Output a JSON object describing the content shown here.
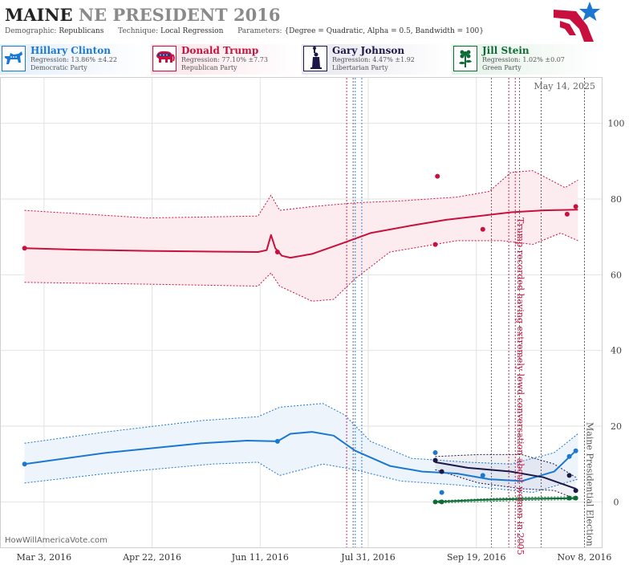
{
  "header": {
    "title_state": "MAINE",
    "title_rest": "NE PRESIDENT 2016",
    "demographic_label": "Demographic:",
    "demographic_value": "Republicans",
    "technique_label": "Technique:",
    "technique_value": "Local Regression",
    "parameters_label": "Parameters:",
    "parameters_value": "{Degree = Quadratic, Alpha = 0.5, Bandwidth = 100}"
  },
  "candidates": [
    {
      "name": "Hillary Clinton",
      "regression": "Regression: 13.86% ±4.22",
      "party": "Democratic Party",
      "color": "#1a78d2",
      "icon": "donkey-icon"
    },
    {
      "name": "Donald Trump",
      "regression": "Regression: 77.10% ±7.73",
      "party": "Republican Party",
      "color": "#c8103e",
      "icon": "elephant-icon"
    },
    {
      "name": "Gary Johnson",
      "regression": "Regression: 4.47% ±1.92",
      "party": "Libertarian Party",
      "color": "#1b1848",
      "icon": "liberty-statue-icon"
    },
    {
      "name": "Jill Stein",
      "regression": "Regression: 1.02% ±0.07",
      "party": "Green Party",
      "color": "#0f6b35",
      "icon": "flower-icon"
    }
  ],
  "chart_data": {
    "type": "line",
    "date_label": "May 14, 2025",
    "x_ticks": [
      "Mar 3, 2016",
      "Apr 22, 2016",
      "Jun 11, 2016",
      "Jul 31, 2016",
      "Sep 19, 2016",
      "Nov 8, 2016"
    ],
    "x_tick_dates": [
      "2016-03-03",
      "2016-04-22",
      "2016-06-11",
      "2016-07-31",
      "2016-09-19",
      "2016-11-08"
    ],
    "x_range": [
      "2016-02-12",
      "2016-11-16"
    ],
    "y_ticks": [
      0,
      20,
      40,
      60,
      80,
      100
    ],
    "ylim": [
      -12,
      112
    ],
    "grid": true,
    "annotations": [
      {
        "text": "Trump recorded having extremely lewd conversation about women in 2005",
        "x": "2016-10-07",
        "color": "#c8103e"
      },
      {
        "text": "Maine Presidential Election",
        "x": "2016-11-08",
        "color": "#555555"
      }
    ],
    "event_lines": [
      {
        "x": "2016-07-21",
        "color": "#c8103e"
      },
      {
        "x": "2016-07-24",
        "color": "#555555"
      },
      {
        "x": "2016-07-25",
        "color": "#1a78d2"
      },
      {
        "x": "2016-07-28",
        "color": "#1a78d2"
      },
      {
        "x": "2016-09-26",
        "color": "#555555"
      },
      {
        "x": "2016-10-04",
        "color": "#c8103e"
      },
      {
        "x": "2016-10-07",
        "color": "#c8103e"
      },
      {
        "x": "2016-10-09",
        "color": "#555555"
      },
      {
        "x": "2016-10-19",
        "color": "#555555"
      },
      {
        "x": "2016-11-08",
        "color": "#555555"
      }
    ],
    "series": [
      {
        "name": "Donald Trump",
        "color": "#c8103e",
        "band_fill": "#fdecef",
        "points": [
          [
            "2016-02-23",
            67
          ],
          [
            "2016-06-19",
            66
          ],
          [
            "2016-08-31",
            68
          ],
          [
            "2016-09-01",
            86
          ],
          [
            "2016-09-22",
            72
          ],
          [
            "2016-10-31",
            76
          ],
          [
            "2016-11-04",
            78
          ]
        ],
        "trend": [
          [
            "2016-02-23",
            67
          ],
          [
            "2016-03-20",
            66.6
          ],
          [
            "2016-04-20",
            66.3
          ],
          [
            "2016-05-20",
            66.1
          ],
          [
            "2016-06-10",
            66
          ],
          [
            "2016-06-14",
            66.5
          ],
          [
            "2016-06-16",
            70.5
          ],
          [
            "2016-06-18",
            67
          ],
          [
            "2016-06-21",
            65
          ],
          [
            "2016-06-25",
            64.5
          ],
          [
            "2016-07-05",
            65.5
          ],
          [
            "2016-07-20",
            68.5
          ],
          [
            "2016-08-01",
            71
          ],
          [
            "2016-08-20",
            73
          ],
          [
            "2016-09-05",
            74.5
          ],
          [
            "2016-09-20",
            75.5
          ],
          [
            "2016-10-05",
            76.5
          ],
          [
            "2016-10-20",
            77
          ],
          [
            "2016-11-05",
            77.2
          ]
        ],
        "upper": [
          [
            "2016-02-23",
            77
          ],
          [
            "2016-04-20",
            75
          ],
          [
            "2016-06-10",
            75.5
          ],
          [
            "2016-06-16",
            81
          ],
          [
            "2016-06-20",
            77
          ],
          [
            "2016-07-05",
            78
          ],
          [
            "2016-07-25",
            79
          ],
          [
            "2016-08-15",
            79.5
          ],
          [
            "2016-09-10",
            80.5
          ],
          [
            "2016-09-25",
            82
          ],
          [
            "2016-10-05",
            87
          ],
          [
            "2016-10-15",
            87.5
          ],
          [
            "2016-10-30",
            83
          ],
          [
            "2016-11-05",
            85
          ]
        ],
        "lower": [
          [
            "2016-02-23",
            58
          ],
          [
            "2016-04-20",
            57.5
          ],
          [
            "2016-06-10",
            57
          ],
          [
            "2016-06-16",
            60.5
          ],
          [
            "2016-06-20",
            57
          ],
          [
            "2016-07-05",
            53
          ],
          [
            "2016-07-15",
            53.5
          ],
          [
            "2016-07-25",
            59
          ],
          [
            "2016-08-10",
            66
          ],
          [
            "2016-09-10",
            69
          ],
          [
            "2016-10-01",
            69
          ],
          [
            "2016-10-15",
            68
          ],
          [
            "2016-10-28",
            71
          ],
          [
            "2016-11-05",
            69
          ]
        ]
      },
      {
        "name": "Hillary Clinton",
        "color": "#1a78d2",
        "band_fill": "#eef4fb",
        "points": [
          [
            "2016-02-23",
            10
          ],
          [
            "2016-06-19",
            16
          ],
          [
            "2016-08-31",
            13
          ],
          [
            "2016-09-03",
            2.5
          ],
          [
            "2016-09-22",
            7
          ],
          [
            "2016-11-01",
            12
          ],
          [
            "2016-11-04",
            13.5
          ]
        ],
        "trend": [
          [
            "2016-02-23",
            10
          ],
          [
            "2016-04-01",
            13
          ],
          [
            "2016-05-15",
            15.5
          ],
          [
            "2016-06-05",
            16.2
          ],
          [
            "2016-06-19",
            16
          ],
          [
            "2016-06-25",
            18
          ],
          [
            "2016-07-05",
            18.5
          ],
          [
            "2016-07-15",
            17.5
          ],
          [
            "2016-07-25",
            13.5
          ],
          [
            "2016-08-10",
            9.5
          ],
          [
            "2016-08-25",
            8
          ],
          [
            "2016-09-10",
            7.5
          ],
          [
            "2016-09-25",
            6
          ],
          [
            "2016-10-10",
            5.5
          ],
          [
            "2016-10-25",
            8
          ],
          [
            "2016-11-04",
            13.5
          ]
        ],
        "upper": [
          [
            "2016-02-23",
            15.5
          ],
          [
            "2016-04-01",
            18.5
          ],
          [
            "2016-05-15",
            21.5
          ],
          [
            "2016-06-10",
            22.5
          ],
          [
            "2016-06-20",
            25
          ],
          [
            "2016-07-10",
            26
          ],
          [
            "2016-07-20",
            23
          ],
          [
            "2016-08-01",
            16
          ],
          [
            "2016-08-20",
            11.5
          ],
          [
            "2016-09-15",
            10.5
          ],
          [
            "2016-10-05",
            10
          ],
          [
            "2016-10-25",
            13
          ],
          [
            "2016-11-05",
            18
          ]
        ],
        "lower": [
          [
            "2016-02-23",
            5
          ],
          [
            "2016-04-01",
            7.5
          ],
          [
            "2016-05-20",
            10
          ],
          [
            "2016-06-10",
            10.5
          ],
          [
            "2016-06-20",
            7
          ],
          [
            "2016-07-10",
            10
          ],
          [
            "2016-07-25",
            8.5
          ],
          [
            "2016-08-15",
            5.5
          ],
          [
            "2016-09-10",
            4.5
          ],
          [
            "2016-09-28",
            3.5
          ],
          [
            "2016-10-15",
            2.5
          ],
          [
            "2016-11-05",
            6
          ]
        ]
      },
      {
        "name": "Gary Johnson",
        "color": "#1b1848",
        "band_fill": "rgba(40,40,80,0.06)",
        "points": [
          [
            "2016-08-31",
            11
          ],
          [
            "2016-09-03",
            8
          ],
          [
            "2016-11-01",
            7
          ],
          [
            "2016-11-04",
            3
          ]
        ],
        "trend": [
          [
            "2016-08-31",
            10.5
          ],
          [
            "2016-09-15",
            9
          ],
          [
            "2016-10-05",
            8
          ],
          [
            "2016-10-20",
            6.5
          ],
          [
            "2016-11-04",
            3.5
          ]
        ],
        "upper": [
          [
            "2016-08-31",
            12
          ],
          [
            "2016-09-20",
            12.5
          ],
          [
            "2016-10-10",
            12.5
          ],
          [
            "2016-10-25",
            10
          ],
          [
            "2016-11-04",
            6.5
          ]
        ],
        "lower": [
          [
            "2016-08-31",
            8.5
          ],
          [
            "2016-09-20",
            5
          ],
          [
            "2016-10-10",
            3.5
          ],
          [
            "2016-10-25",
            3
          ],
          [
            "2016-11-04",
            0.8
          ]
        ]
      },
      {
        "name": "Jill Stein",
        "color": "#0f6b35",
        "band_fill": "rgba(15,107,53,0.06)",
        "points": [
          [
            "2016-08-31",
            0
          ],
          [
            "2016-09-03",
            0
          ],
          [
            "2016-11-01",
            1
          ],
          [
            "2016-11-04",
            1
          ]
        ],
        "trend": [
          [
            "2016-08-31",
            0
          ],
          [
            "2016-09-20",
            0.5
          ],
          [
            "2016-10-10",
            0.8
          ],
          [
            "2016-11-04",
            1
          ]
        ],
        "upper": [
          [
            "2016-08-31",
            0.3
          ],
          [
            "2016-10-10",
            1.2
          ],
          [
            "2016-11-04",
            1.4
          ]
        ],
        "lower": [
          [
            "2016-08-31",
            -0.3
          ],
          [
            "2016-10-10",
            0.4
          ],
          [
            "2016-11-04",
            0.6
          ]
        ]
      }
    ]
  },
  "footer": {
    "credit": "HowWillAmericaVote.com"
  }
}
